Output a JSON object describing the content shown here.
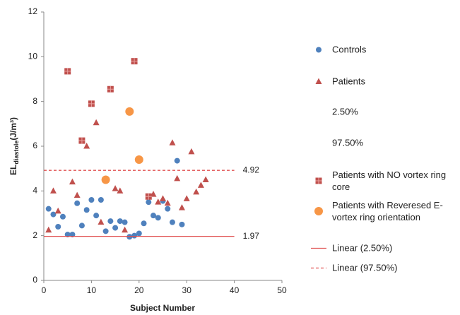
{
  "chart_data": {
    "type": "scatter",
    "x_label": "Subject Number",
    "y_label": {
      "main": "EL",
      "sub": "diastole",
      "unit": "(J/m³)"
    },
    "xlim": [
      0,
      50
    ],
    "xticks": [
      0,
      10,
      20,
      30,
      40,
      50
    ],
    "ylim": [
      0,
      12
    ],
    "yticks": [
      0,
      2,
      4,
      6,
      8,
      10,
      12
    ],
    "grid": false,
    "series": [
      {
        "name": "Controls",
        "marker": "circle",
        "color": "#4f81bd",
        "x": [
          1,
          2,
          3,
          4,
          5,
          6,
          7,
          8,
          9,
          10,
          11,
          12,
          13,
          14,
          15,
          16,
          17,
          18,
          19,
          20,
          21,
          22,
          23,
          24,
          25,
          26,
          27,
          28,
          29
        ],
        "values": [
          3.2,
          2.95,
          2.4,
          2.85,
          2.05,
          2.05,
          3.45,
          2.45,
          3.15,
          3.6,
          2.9,
          3.6,
          2.2,
          2.65,
          2.35,
          2.65,
          2.6,
          1.95,
          2.0,
          2.1,
          2.55,
          3.5,
          2.9,
          2.8,
          3.55,
          3.2,
          2.6,
          5.35,
          2.5
        ]
      },
      {
        "name": "Patients",
        "marker": "triangle",
        "color": "#c0504d",
        "x": [
          1,
          2,
          3,
          6,
          7,
          9,
          11,
          12,
          15,
          16,
          17,
          23,
          24,
          25,
          26,
          27,
          28,
          29,
          30,
          31,
          32,
          33,
          34
        ],
        "values": [
          2.25,
          4.0,
          3.1,
          4.4,
          3.8,
          6.0,
          7.05,
          2.6,
          4.1,
          4.0,
          2.25,
          3.85,
          3.5,
          3.65,
          3.45,
          6.15,
          4.55,
          3.25,
          3.65,
          5.75,
          3.95,
          4.25,
          4.5
        ]
      },
      {
        "name": "2.50%",
        "marker": "none",
        "color": "#ffffff",
        "x": [],
        "values": []
      },
      {
        "name": "97.50%",
        "marker": "none",
        "color": "#ffffff",
        "x": [],
        "values": []
      },
      {
        "name": "Patients with NO vortex ring core",
        "marker": "square",
        "color": "#c0504d",
        "x": [
          5,
          8,
          10,
          14,
          19,
          22
        ],
        "values": [
          9.35,
          6.25,
          7.9,
          8.55,
          9.8,
          3.75
        ]
      },
      {
        "name": "Patients with Reveresed E-vortex ring orientation",
        "marker": "circle-large",
        "color": "#f79646",
        "x": [
          13,
          18,
          20
        ],
        "values": [
          4.5,
          7.55,
          5.4
        ]
      },
      {
        "name": "Linear (2.50%)",
        "marker": "none",
        "line": "solid",
        "color": "#e05050",
        "x": [
          0,
          40
        ],
        "values": [
          1.97,
          1.97
        ]
      },
      {
        "name": "Linear (97.50%)",
        "marker": "none",
        "line": "dashed",
        "color": "#e05050",
        "x": [
          0,
          40
        ],
        "values": [
          4.92,
          4.92
        ]
      }
    ]
  }
}
